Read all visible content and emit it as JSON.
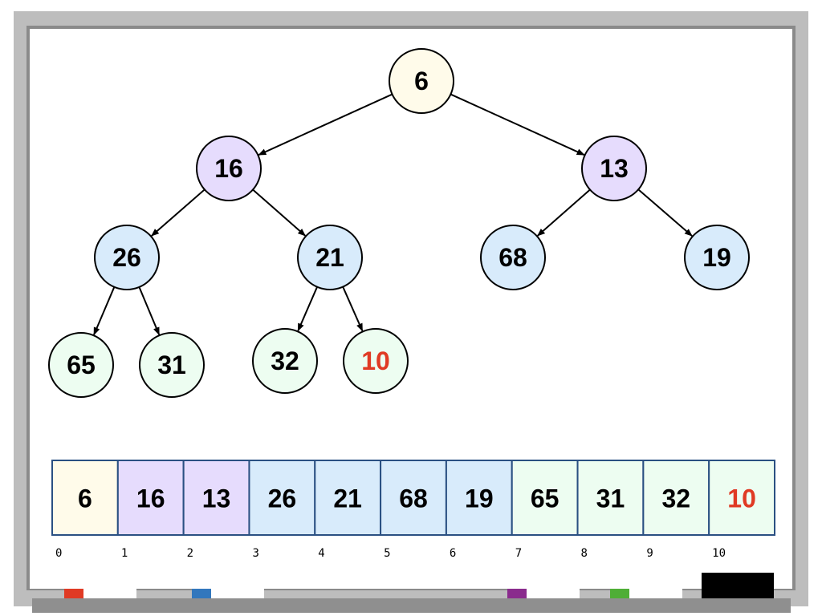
{
  "heap": {
    "values": [
      "6",
      "16",
      "13",
      "26",
      "21",
      "68",
      "19",
      "65",
      "31",
      "32",
      "10"
    ],
    "highlight_index": 10,
    "edges": [
      [
        0,
        1
      ],
      [
        0,
        2
      ],
      [
        1,
        3
      ],
      [
        1,
        4
      ],
      [
        2,
        5
      ],
      [
        2,
        6
      ],
      [
        3,
        7
      ],
      [
        3,
        8
      ],
      [
        4,
        9
      ],
      [
        4,
        10
      ]
    ],
    "indices": [
      "0",
      "1",
      "2",
      "3",
      "4",
      "5",
      "6",
      "7",
      "8",
      "9",
      "10"
    ]
  },
  "colors": {
    "level0": "#fffbea",
    "level1": "#e6dcfd",
    "level2": "#d8ebfb",
    "level3": "#edfdf1",
    "highlight_text": "#e03a24",
    "array_border": "#2a5082",
    "markers": [
      "#e03a24",
      "#3277bd",
      "#8a2b8d",
      "#4fae36"
    ]
  }
}
